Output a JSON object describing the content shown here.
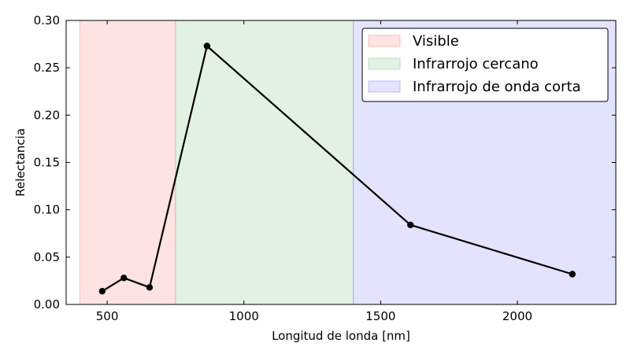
{
  "chart_data": {
    "type": "line",
    "xlabel": "Longitud de londa [nm]",
    "ylabel": "Relectancia",
    "xlim": [
      350,
      2360
    ],
    "ylim": [
      0.0,
      0.3
    ],
    "xticks": [
      500,
      1000,
      1500,
      2000
    ],
    "yticks": [
      0.0,
      0.05,
      0.1,
      0.15,
      0.2,
      0.25,
      0.3
    ],
    "xtick_labels": [
      "500",
      "1000",
      "1500",
      "2000"
    ],
    "ytick_labels": [
      "0.00",
      "0.05",
      "0.10",
      "0.15",
      "0.20",
      "0.25",
      "0.30"
    ],
    "grid": false,
    "legend_position": "top-right",
    "bands": [
      {
        "name": "Visible",
        "x_start": 400,
        "x_end": 750,
        "color": "#ff9999"
      },
      {
        "name": "Infrarrojo cercano",
        "x_start": 750,
        "x_end": 1400,
        "color": "#99cc99"
      },
      {
        "name": "Infrarrojo de onda corta",
        "x_start": 1400,
        "x_end": 2360,
        "color": "#9999ff"
      }
    ],
    "series": [
      {
        "color": "#000000",
        "x": [
          482,
          561,
          655,
          865,
          1609,
          2201
        ],
        "y": [
          0.014,
          0.028,
          0.018,
          0.273,
          0.084,
          0.032
        ]
      }
    ]
  }
}
